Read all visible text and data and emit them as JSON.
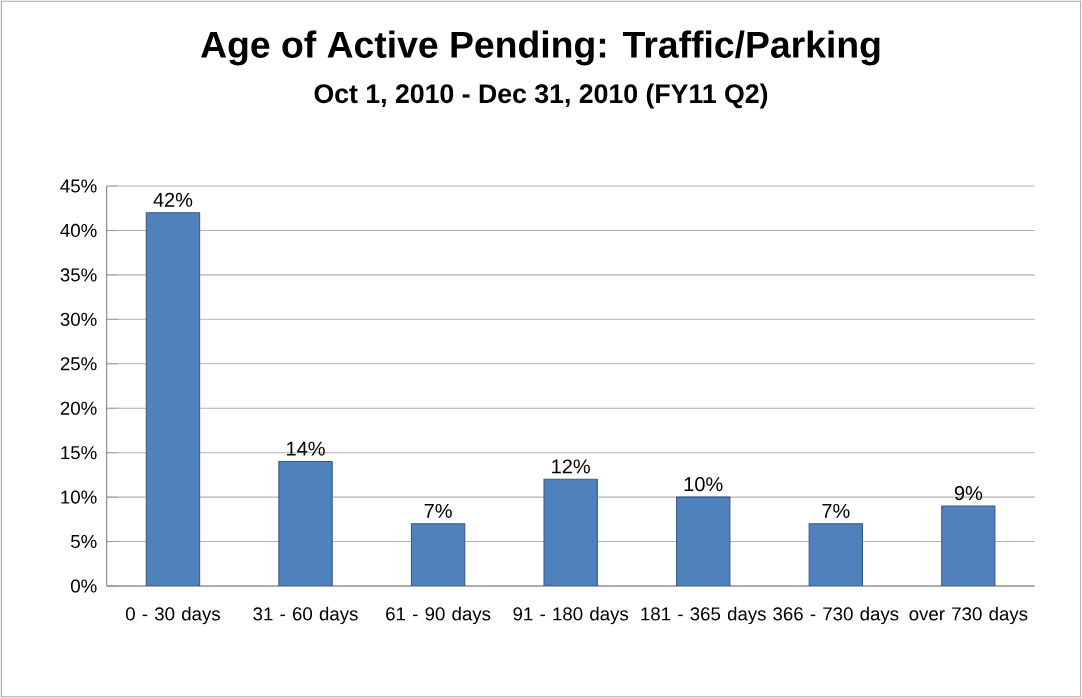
{
  "chart_data": {
    "type": "bar",
    "title": "Age of Active Pending: Traffic/Parking",
    "subtitle": "Oct 1, 2010 - Dec 31, 2010 (FY11 Q2)",
    "categories": [
      "0 - 30 days",
      "31 - 60 days",
      "61 - 90 days",
      "91 - 180 days",
      "181 - 365 days",
      "366 - 730 days",
      "over 730 days"
    ],
    "values": [
      42,
      14,
      7,
      12,
      10,
      7,
      9
    ],
    "value_labels": [
      "42%",
      "14%",
      "7%",
      "12%",
      "10%",
      "7%",
      "9%"
    ],
    "color": "#4f81bd",
    "ylim": [
      0,
      45
    ],
    "yticks": [
      {
        "value": 0,
        "label": "0%"
      },
      {
        "value": 5,
        "label": "5%"
      },
      {
        "value": 10,
        "label": "10%"
      },
      {
        "value": 15,
        "label": "15%"
      },
      {
        "value": 20,
        "label": "20%"
      },
      {
        "value": 25,
        "label": "25%"
      },
      {
        "value": 30,
        "label": "30%"
      },
      {
        "value": 35,
        "label": "35%"
      },
      {
        "value": 40,
        "label": "40%"
      },
      {
        "value": 45,
        "label": "45%"
      }
    ],
    "grid": "y"
  }
}
